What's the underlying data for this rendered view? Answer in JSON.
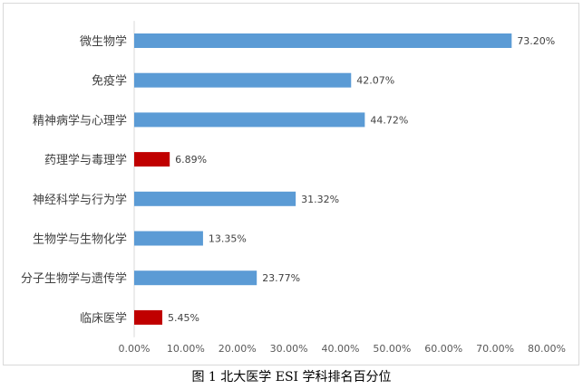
{
  "caption": "图 1  北大医学 ESI 学科排名百分位",
  "chart_data": {
    "type": "bar",
    "orientation": "horizontal",
    "categories": [
      "微生物学",
      "免疫学",
      "精神病学与心理学",
      "药理学与毒理学",
      "神经科学与行为学",
      "生物学与生物化学",
      "分子生物学与遗传学",
      "临床医学"
    ],
    "values": [
      73.2,
      42.07,
      44.72,
      6.89,
      31.32,
      13.35,
      23.77,
      5.45
    ],
    "value_labels": [
      "73.20%",
      "42.07%",
      "44.72%",
      "6.89%",
      "31.32%",
      "13.35%",
      "23.77%",
      "5.45%"
    ],
    "bar_colors": [
      "#5b9bd5",
      "#5b9bd5",
      "#5b9bd5",
      "#c00000",
      "#5b9bd5",
      "#5b9bd5",
      "#5b9bd5",
      "#c00000"
    ],
    "xlim": [
      0,
      80
    ],
    "xticks": [
      0,
      10,
      20,
      30,
      40,
      50,
      60,
      70,
      80
    ],
    "xtick_labels": [
      "0.00%",
      "10.00%",
      "20.00%",
      "30.00%",
      "40.00%",
      "50.00%",
      "60.00%",
      "70.00%",
      "80.00%"
    ],
    "title": "",
    "xlabel": "",
    "ylabel": "",
    "grid": false,
    "legend": "none"
  }
}
